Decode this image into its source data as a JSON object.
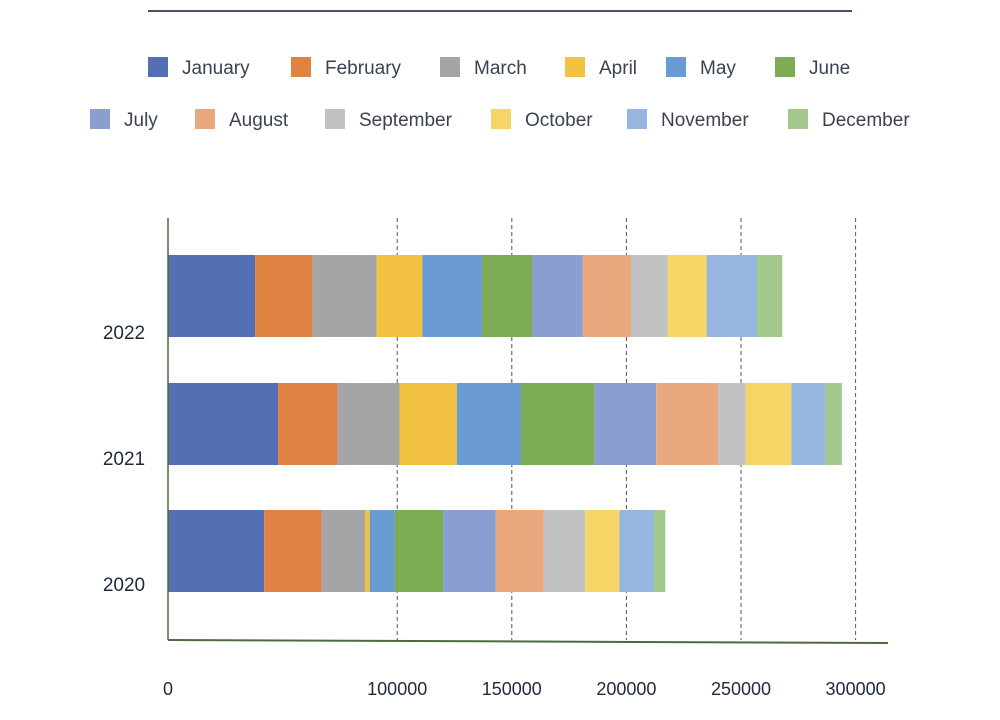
{
  "chart_data": {
    "type": "bar",
    "orientation": "horizontal",
    "stacked": true,
    "title": "",
    "xlabel": "",
    "ylabel": "",
    "categories": [
      "2022",
      "2021",
      "2020"
    ],
    "xlim": [
      0,
      310000
    ],
    "x_ticks": [
      0,
      100000,
      150000,
      200000,
      250000,
      300000
    ],
    "grid": "vertical dashed",
    "legend_position": "top",
    "series": [
      {
        "name": "January",
        "color": "#5470b3",
        "values": [
          38000,
          48000,
          42000
        ]
      },
      {
        "name": "February",
        "color": "#df8242",
        "values": [
          25000,
          26000,
          25000
        ]
      },
      {
        "name": "March",
        "color": "#a5a5a5",
        "values": [
          28000,
          27000,
          19000
        ]
      },
      {
        "name": "April",
        "color": "#f4c242",
        "values": [
          20000,
          25000,
          2000
        ]
      },
      {
        "name": "May",
        "color": "#6a9bd3",
        "values": [
          26000,
          28000,
          11000
        ]
      },
      {
        "name": "June",
        "color": "#7dac54",
        "values": [
          22000,
          32000,
          21000
        ]
      },
      {
        "name": "July",
        "color": "#889fd0",
        "values": [
          22000,
          27000,
          23000
        ]
      },
      {
        "name": "August",
        "color": "#e9a87e",
        "values": [
          21000,
          27000,
          21000
        ]
      },
      {
        "name": "September",
        "color": "#c2c2c2",
        "values": [
          16000,
          12000,
          18000
        ]
      },
      {
        "name": "October",
        "color": "#f7d466",
        "values": [
          17000,
          20000,
          15000
        ]
      },
      {
        "name": "November",
        "color": "#96b6e0",
        "values": [
          22000,
          15000,
          15000
        ]
      },
      {
        "name": "December",
        "color": "#a2c98b",
        "values": [
          11000,
          7000,
          5000
        ]
      }
    ]
  }
}
